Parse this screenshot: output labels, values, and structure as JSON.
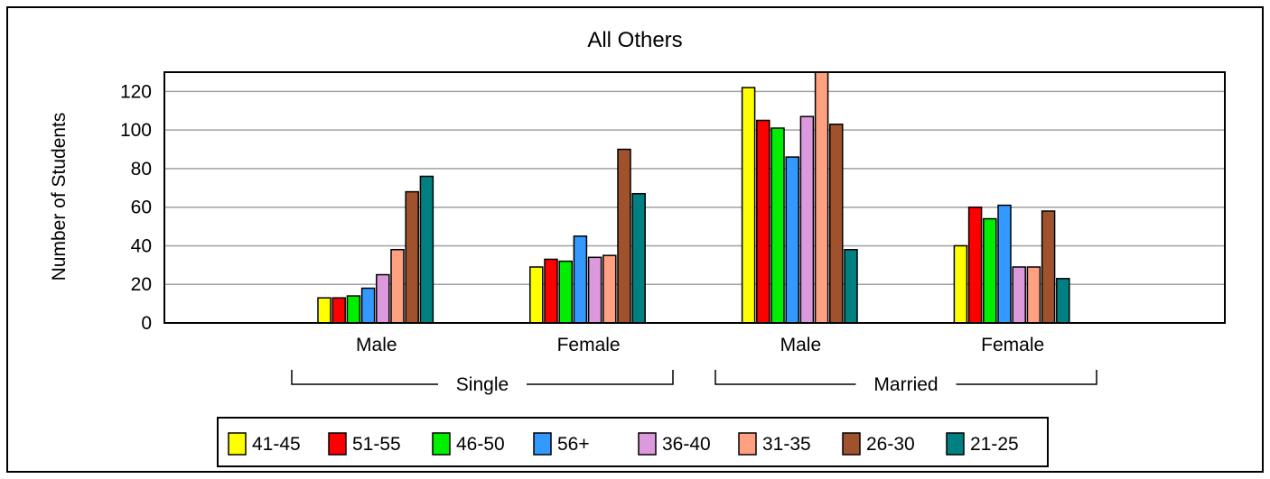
{
  "chart_data": {
    "type": "bar",
    "title": "All Others",
    "xlabel": "",
    "ylabel": "Number of Students",
    "ylim": [
      0,
      130
    ],
    "yticks": [
      "0",
      "20",
      "40",
      "60",
      "80",
      "100",
      "120"
    ],
    "grid": true,
    "legend_position": "bottom",
    "categories": [
      "Male",
      "Female",
      "Male",
      "Female"
    ],
    "groups": [
      {
        "label": "Single",
        "categories": [
          "Male",
          "Female"
        ]
      },
      {
        "label": "Married",
        "categories": [
          "Male",
          "Female"
        ]
      }
    ],
    "series": [
      {
        "name": "41-45",
        "color": "#ffff00",
        "values": [
          13,
          29,
          122,
          40
        ]
      },
      {
        "name": "51-55",
        "color": "#ff0000",
        "values": [
          13,
          33,
          105,
          60
        ]
      },
      {
        "name": "46-50",
        "color": "#00ee00",
        "values": [
          14,
          32,
          101,
          54
        ]
      },
      {
        "name": "56+",
        "color": "#3399ff",
        "values": [
          18,
          45,
          86,
          61
        ]
      },
      {
        "name": "36-40",
        "color": "#dd99dd",
        "values": [
          25,
          34,
          107,
          29
        ]
      },
      {
        "name": "31-35",
        "color": "#ffa080",
        "values": [
          38,
          35,
          130,
          29
        ]
      },
      {
        "name": "26-30",
        "color": "#a0522d",
        "values": [
          68,
          90,
          103,
          58
        ]
      },
      {
        "name": "21-25",
        "color": "#008080",
        "values": [
          76,
          67,
          38,
          23
        ]
      }
    ]
  }
}
